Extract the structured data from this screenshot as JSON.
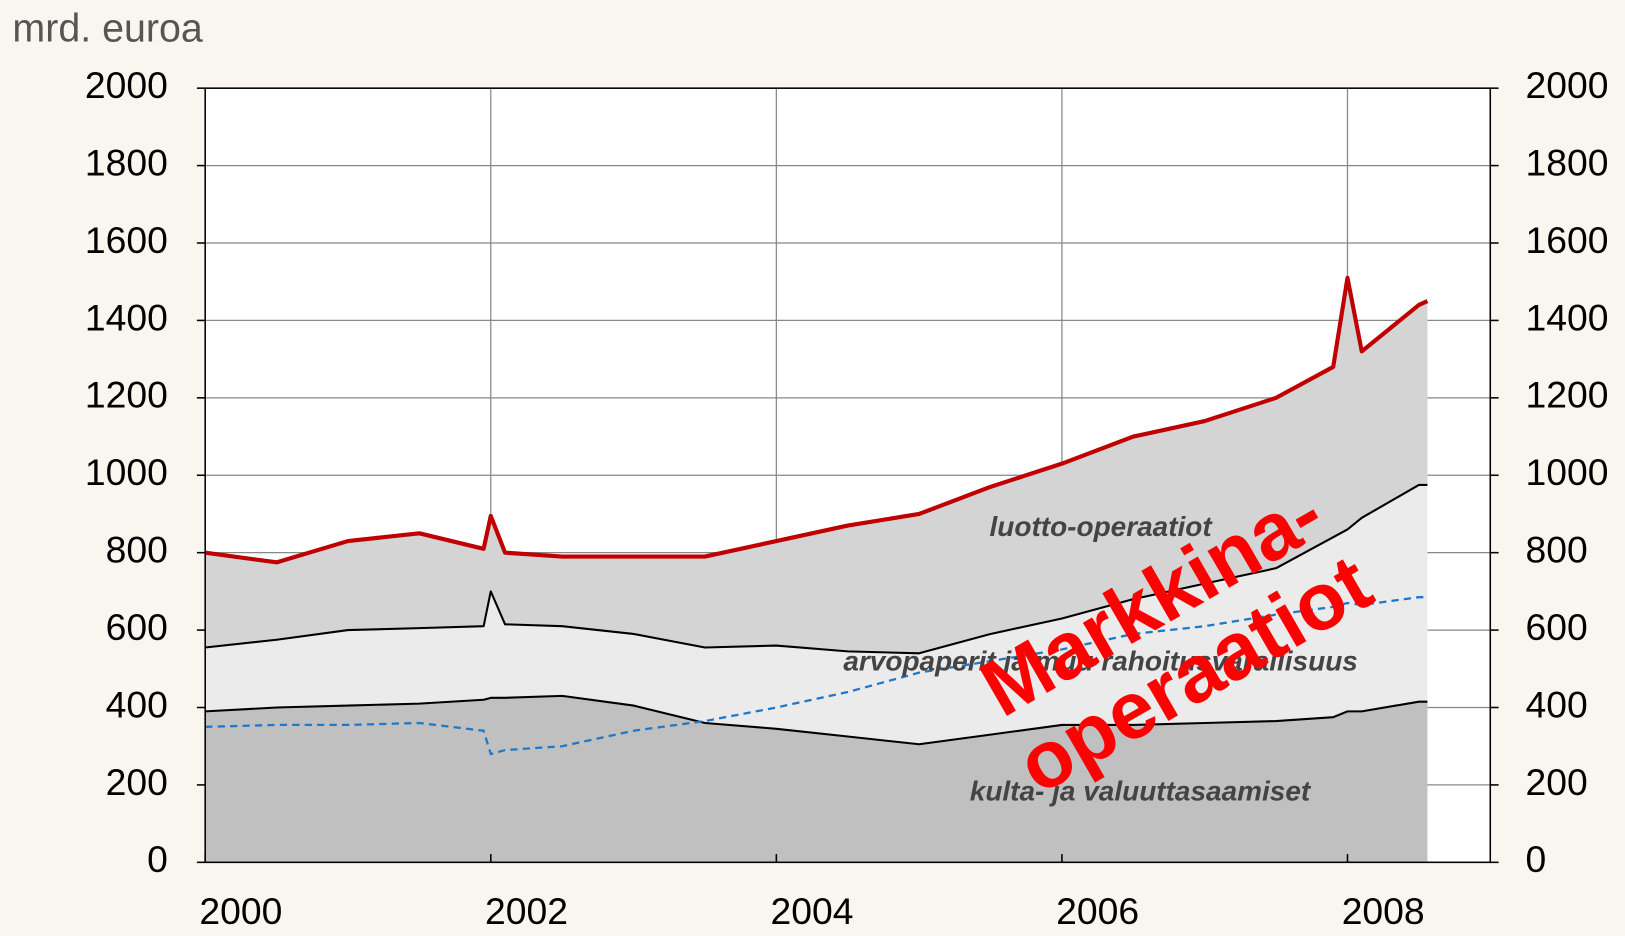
{
  "chart_data": {
    "type": "stacked-area",
    "ylabel": "mrd. euroa",
    "x": [
      2000,
      2000.5,
      2001,
      2001.5,
      2001.95,
      2002,
      2002.1,
      2002.5,
      2003,
      2003.5,
      2004,
      2004.5,
      2005,
      2005.5,
      2006,
      2006.5,
      2007,
      2007.5,
      2007.9,
      2008,
      2008.1,
      2008.5,
      2008.56
    ],
    "series": [
      {
        "name": "kulta- ja valuuttasaamiset",
        "color": "#c0c0c0",
        "values": [
          390,
          400,
          405,
          410,
          420,
          425,
          425,
          430,
          405,
          360,
          345,
          325,
          305,
          330,
          355,
          355,
          360,
          365,
          375,
          390,
          390,
          415,
          415
        ]
      },
      {
        "name": "arvopaperit ja muu rahoitusvarallisuus",
        "color": "#ebebeb",
        "values": [
          165,
          175,
          195,
          195,
          190,
          275,
          190,
          180,
          185,
          195,
          215,
          220,
          235,
          260,
          275,
          325,
          360,
          395,
          465,
          470,
          500,
          560,
          560
        ]
      },
      {
        "name": "luotto-operaatiot",
        "color": "#d4d4d4",
        "line_color": "#c00000",
        "values": [
          245,
          200,
          230,
          245,
          200,
          195,
          185,
          180,
          200,
          235,
          270,
          325,
          360,
          380,
          400,
          420,
          420,
          440,
          440,
          650,
          430,
          465,
          475
        ]
      },
      {
        "type": "line",
        "dashed": true,
        "color": "#1f78c8",
        "values": [
          350,
          355,
          355,
          360,
          340,
          280,
          290,
          300,
          340,
          365,
          400,
          440,
          490,
          520,
          550,
          590,
          610,
          640,
          660,
          670,
          665,
          685,
          685
        ]
      }
    ],
    "annotation": [
      "Markkina-",
      "operaatiot"
    ],
    "annotation_color": "#ff0000",
    "xlim": [
      2000,
      2009
    ],
    "xticks": [
      2000,
      2002,
      2004,
      2006,
      2008
    ],
    "ylim": [
      0,
      2000
    ],
    "yticks": [
      0,
      200,
      400,
      600,
      800,
      1000,
      1200,
      1400,
      1600,
      1800,
      2000
    ],
    "y2lim": [
      0,
      2000
    ],
    "y2ticks": [
      0,
      200,
      400,
      600,
      800,
      1000,
      1200,
      1400,
      1600,
      1800,
      2000
    ],
    "grid": true
  }
}
